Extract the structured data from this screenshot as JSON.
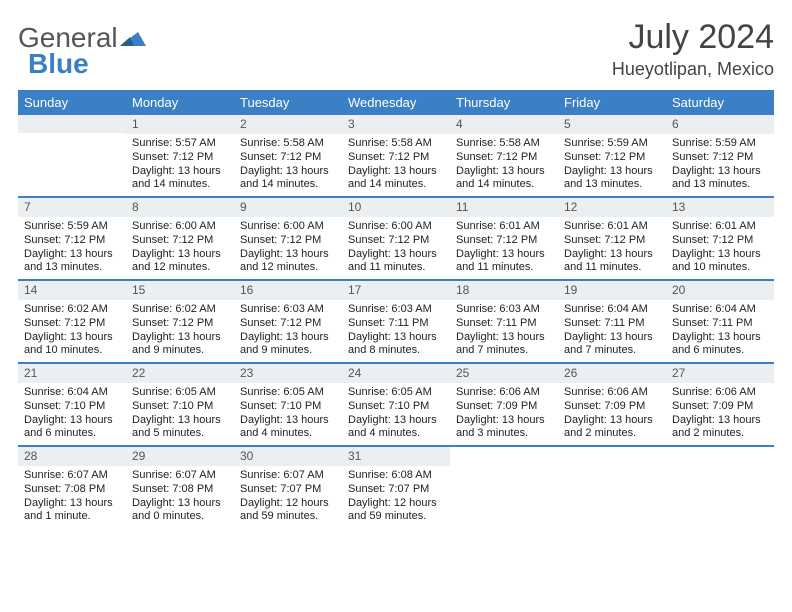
{
  "brand": {
    "part1": "General",
    "part2": "Blue"
  },
  "title": "July 2024",
  "location": "Hueyotlipan, Mexico",
  "colors": {
    "accent": "#3b7fc4",
    "header_text": "#ffffff",
    "daynum_bg": "#eceff1",
    "text": "#222222",
    "muted": "#555555"
  },
  "layout": {
    "cols": 7,
    "rows": 5,
    "first_weekday_offset": 1
  },
  "weekdays": [
    "Sunday",
    "Monday",
    "Tuesday",
    "Wednesday",
    "Thursday",
    "Friday",
    "Saturday"
  ],
  "days": [
    {
      "n": 1,
      "sunrise": "5:57 AM",
      "sunset": "7:12 PM",
      "daylight": "13 hours and 14 minutes."
    },
    {
      "n": 2,
      "sunrise": "5:58 AM",
      "sunset": "7:12 PM",
      "daylight": "13 hours and 14 minutes."
    },
    {
      "n": 3,
      "sunrise": "5:58 AM",
      "sunset": "7:12 PM",
      "daylight": "13 hours and 14 minutes."
    },
    {
      "n": 4,
      "sunrise": "5:58 AM",
      "sunset": "7:12 PM",
      "daylight": "13 hours and 14 minutes."
    },
    {
      "n": 5,
      "sunrise": "5:59 AM",
      "sunset": "7:12 PM",
      "daylight": "13 hours and 13 minutes."
    },
    {
      "n": 6,
      "sunrise": "5:59 AM",
      "sunset": "7:12 PM",
      "daylight": "13 hours and 13 minutes."
    },
    {
      "n": 7,
      "sunrise": "5:59 AM",
      "sunset": "7:12 PM",
      "daylight": "13 hours and 13 minutes."
    },
    {
      "n": 8,
      "sunrise": "6:00 AM",
      "sunset": "7:12 PM",
      "daylight": "13 hours and 12 minutes."
    },
    {
      "n": 9,
      "sunrise": "6:00 AM",
      "sunset": "7:12 PM",
      "daylight": "13 hours and 12 minutes."
    },
    {
      "n": 10,
      "sunrise": "6:00 AM",
      "sunset": "7:12 PM",
      "daylight": "13 hours and 11 minutes."
    },
    {
      "n": 11,
      "sunrise": "6:01 AM",
      "sunset": "7:12 PM",
      "daylight": "13 hours and 11 minutes."
    },
    {
      "n": 12,
      "sunrise": "6:01 AM",
      "sunset": "7:12 PM",
      "daylight": "13 hours and 11 minutes."
    },
    {
      "n": 13,
      "sunrise": "6:01 AM",
      "sunset": "7:12 PM",
      "daylight": "13 hours and 10 minutes."
    },
    {
      "n": 14,
      "sunrise": "6:02 AM",
      "sunset": "7:12 PM",
      "daylight": "13 hours and 10 minutes."
    },
    {
      "n": 15,
      "sunrise": "6:02 AM",
      "sunset": "7:12 PM",
      "daylight": "13 hours and 9 minutes."
    },
    {
      "n": 16,
      "sunrise": "6:03 AM",
      "sunset": "7:12 PM",
      "daylight": "13 hours and 9 minutes."
    },
    {
      "n": 17,
      "sunrise": "6:03 AM",
      "sunset": "7:11 PM",
      "daylight": "13 hours and 8 minutes."
    },
    {
      "n": 18,
      "sunrise": "6:03 AM",
      "sunset": "7:11 PM",
      "daylight": "13 hours and 7 minutes."
    },
    {
      "n": 19,
      "sunrise": "6:04 AM",
      "sunset": "7:11 PM",
      "daylight": "13 hours and 7 minutes."
    },
    {
      "n": 20,
      "sunrise": "6:04 AM",
      "sunset": "7:11 PM",
      "daylight": "13 hours and 6 minutes."
    },
    {
      "n": 21,
      "sunrise": "6:04 AM",
      "sunset": "7:10 PM",
      "daylight": "13 hours and 6 minutes."
    },
    {
      "n": 22,
      "sunrise": "6:05 AM",
      "sunset": "7:10 PM",
      "daylight": "13 hours and 5 minutes."
    },
    {
      "n": 23,
      "sunrise": "6:05 AM",
      "sunset": "7:10 PM",
      "daylight": "13 hours and 4 minutes."
    },
    {
      "n": 24,
      "sunrise": "6:05 AM",
      "sunset": "7:10 PM",
      "daylight": "13 hours and 4 minutes."
    },
    {
      "n": 25,
      "sunrise": "6:06 AM",
      "sunset": "7:09 PM",
      "daylight": "13 hours and 3 minutes."
    },
    {
      "n": 26,
      "sunrise": "6:06 AM",
      "sunset": "7:09 PM",
      "daylight": "13 hours and 2 minutes."
    },
    {
      "n": 27,
      "sunrise": "6:06 AM",
      "sunset": "7:09 PM",
      "daylight": "13 hours and 2 minutes."
    },
    {
      "n": 28,
      "sunrise": "6:07 AM",
      "sunset": "7:08 PM",
      "daylight": "13 hours and 1 minute."
    },
    {
      "n": 29,
      "sunrise": "6:07 AM",
      "sunset": "7:08 PM",
      "daylight": "13 hours and 0 minutes."
    },
    {
      "n": 30,
      "sunrise": "6:07 AM",
      "sunset": "7:07 PM",
      "daylight": "12 hours and 59 minutes."
    },
    {
      "n": 31,
      "sunrise": "6:08 AM",
      "sunset": "7:07 PM",
      "daylight": "12 hours and 59 minutes."
    }
  ],
  "labels": {
    "sunrise": "Sunrise:",
    "sunset": "Sunset:",
    "daylight": "Daylight:"
  }
}
